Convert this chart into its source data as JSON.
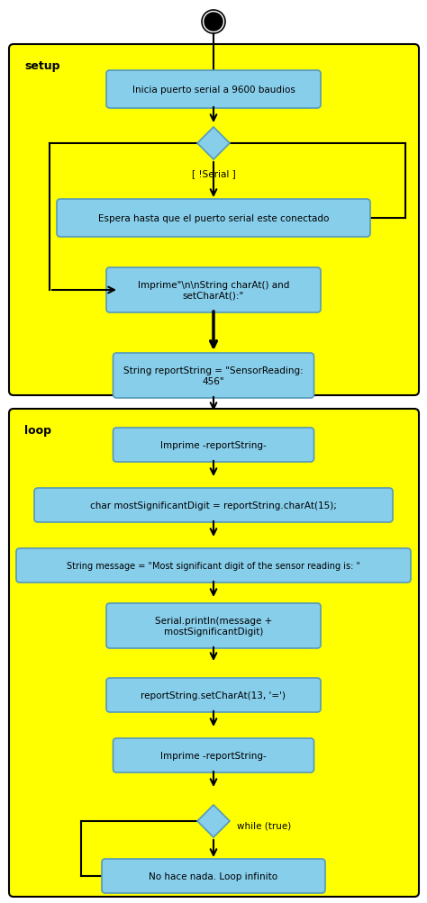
{
  "bg_color": "#FFFF00",
  "white_color": "#FFFFFF",
  "box_color": "#87CEEB",
  "box_edge_color": "#5599BB",
  "arrow_color": "#000000",
  "setup_label": "setup",
  "loop_label": "loop",
  "font_size": 7.5,
  "fig_w": 4.74,
  "fig_h": 10.04,
  "dpi": 100,
  "nodes": {
    "n1": {
      "text": "Inicia puerto serial a 9600 baudios"
    },
    "n2": {
      "text": "Espera hasta que el puerto serial este conectado"
    },
    "n3": {
      "text": "Imprime\"\\n\\nString charAt() and\nsetCharAt():\""
    },
    "n4": {
      "text": "String reportString = \"SensorReading:\n456\""
    },
    "n5": {
      "text": "Imprime -reportString-"
    },
    "n6": {
      "text": "char mostSignificantDigit = reportString.charAt(15);"
    },
    "n7": {
      "text": "String message = \"Most significant digit of the sensor reading is: \""
    },
    "n8": {
      "text": "Serial.println(message +\nmostSignificantDigit)"
    },
    "n9": {
      "text": "reportString.setCharAt(13, '=')"
    },
    "n10": {
      "text": "Imprime -reportString-"
    },
    "n11": {
      "text": "No hace nada. Loop infinito"
    },
    "d1_label": {
      "text": "[ !Serial ]"
    },
    "d2_label": {
      "text": "while (true)"
    }
  }
}
